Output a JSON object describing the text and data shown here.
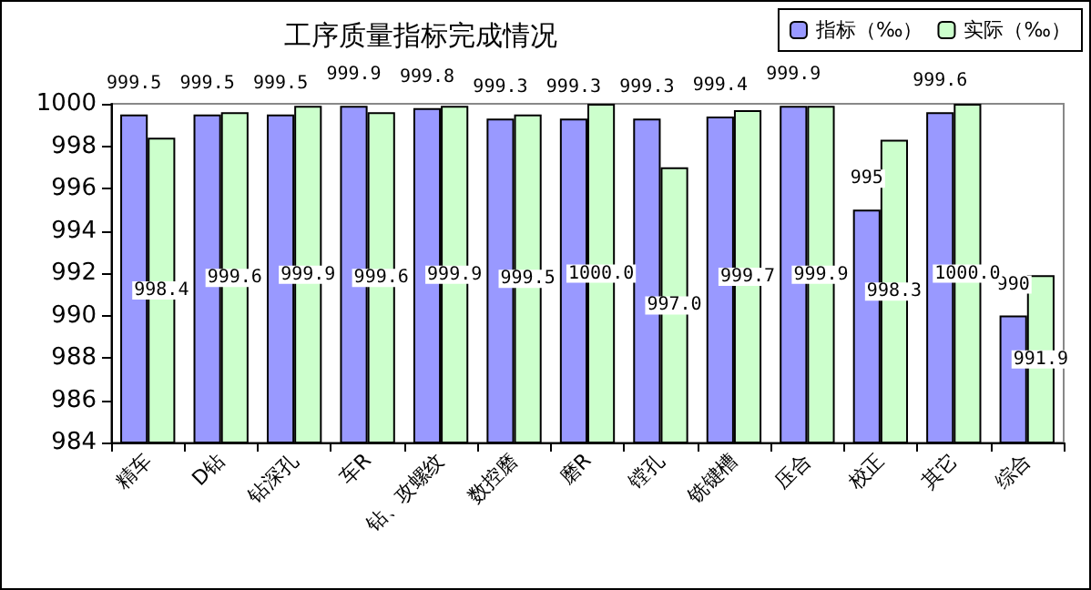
{
  "chart_data": {
    "type": "bar",
    "title": "工序质量指标完成情况",
    "categories": [
      "精车",
      "D钻",
      "钻深孔",
      "车R",
      "钻、攻螺纹",
      "数控磨",
      "磨R",
      "镗孔",
      "铣键槽",
      "压合",
      "校正",
      "其它",
      "综合"
    ],
    "series": [
      {
        "name": "指标（‰）",
        "color": "#9999ff",
        "values": [
          999.5,
          999.5,
          999.5,
          999.9,
          999.8,
          999.3,
          999.3,
          999.3,
          999.4,
          999.9,
          995,
          999.6,
          990
        ],
        "value_labels": [
          "999.5",
          "999.5",
          "999.5",
          "999.9",
          "999.8",
          "999.3",
          "999.3",
          "999.3",
          "999.4",
          "999.9",
          "995",
          "999.6",
          "990"
        ]
      },
      {
        "name": "实际（‰）",
        "color": "#ccffcc",
        "values": [
          998.4,
          999.6,
          999.9,
          999.6,
          999.9,
          999.5,
          1000.0,
          997.0,
          999.7,
          999.9,
          998.3,
          1000.0,
          991.9
        ],
        "value_labels": [
          "998.4",
          "999.6",
          "999.9",
          "999.6",
          "999.9",
          "999.5",
          "1000.0",
          "997.0",
          "999.7",
          "999.9",
          "998.3",
          "1000.0",
          "991.9"
        ]
      }
    ],
    "ylim": [
      984,
      1000
    ],
    "yticks": [
      984,
      986,
      988,
      990,
      992,
      994,
      996,
      998,
      1000
    ],
    "grid": false,
    "legend": "top right"
  }
}
